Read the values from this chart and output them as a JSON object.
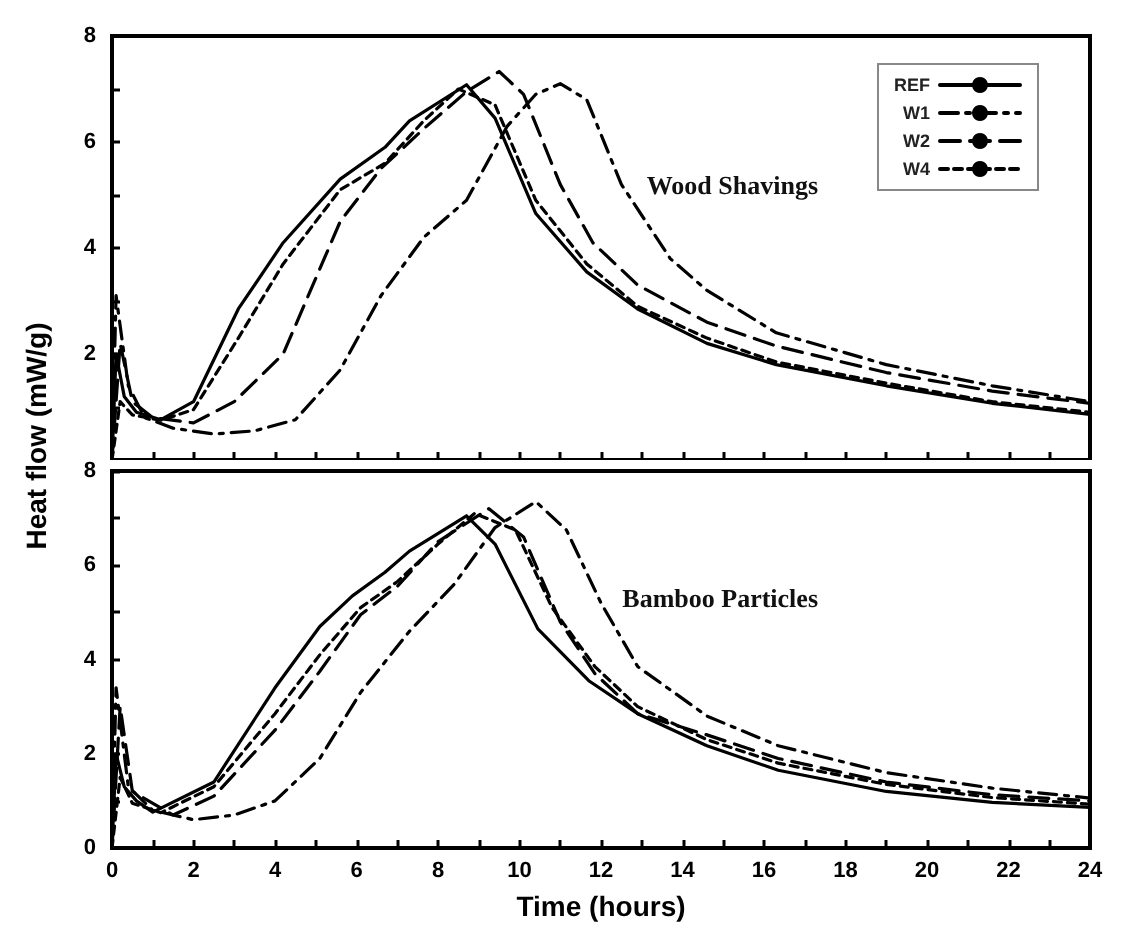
{
  "chart_data": [
    {
      "type": "line",
      "xlim": [
        0,
        24
      ],
      "ylim": [
        0,
        8
      ],
      "xticks": [
        0,
        {
          "value": 1,
          "label": null
        },
        2,
        {
          "value": 3,
          "label": null
        },
        4,
        {
          "value": 5,
          "label": null
        },
        6,
        {
          "value": 7,
          "label": null
        },
        8,
        {
          "value": 9,
          "label": null
        },
        10,
        {
          "value": 11,
          "label": null
        },
        12,
        {
          "value": 13,
          "label": null
        },
        14,
        {
          "value": 15,
          "label": null
        },
        16,
        {
          "value": 17,
          "label": null
        },
        18,
        {
          "value": 19,
          "label": null
        },
        20,
        {
          "value": 21,
          "label": null
        },
        22,
        {
          "value": 23,
          "label": null
        },
        24
      ],
      "yticks": [
        {
          "value": 0,
          "label": null
        },
        {
          "value": 1,
          "label": null
        },
        2,
        {
          "value": 3,
          "label": null
        },
        4,
        {
          "value": 5,
          "label": null
        },
        6,
        {
          "value": 7,
          "label": null
        },
        8
      ],
      "tick_labels": "y",
      "legend": "top right",
      "grid": false,
      "marker": "none",
      "annotations": [
        "Wood Shavings"
      ],
      "series": [
        {
          "name": "REF",
          "color": "#000000",
          "line_style": "solid",
          "x": [
            0,
            0.1,
            0.3,
            0.6,
            1.2,
            2,
            3.1,
            4.2,
            5.6,
            6.7,
            7.3,
            8.7,
            9.4,
            10.4,
            11.65,
            12.9,
            14.6,
            16.3,
            19,
            21.6,
            24
          ],
          "values": [
            0,
            2.0,
            1.2,
            0.9,
            0.76,
            1.1,
            2.85,
            4.1,
            5.3,
            5.9,
            6.4,
            7.08,
            6.45,
            4.65,
            3.55,
            2.85,
            2.2,
            1.8,
            1.4,
            1.07,
            0.86
          ]
        },
        {
          "name": "W1",
          "color": "#000000",
          "line_style": "dashdot",
          "x": [
            0,
            0.1,
            0.4,
            0.8,
            1.5,
            2.5,
            3.5,
            4.5,
            5.6,
            6.6,
            7.65,
            8.7,
            9.7,
            10.4,
            11,
            11.65,
            12.5,
            13.7,
            14.6,
            16.3,
            19,
            21.6,
            24
          ],
          "values": [
            0,
            3.1,
            1.4,
            0.8,
            0.6,
            0.49,
            0.55,
            0.76,
            1.7,
            3.1,
            4.2,
            4.9,
            6.3,
            6.9,
            7.1,
            6.8,
            5.2,
            3.8,
            3.2,
            2.4,
            1.8,
            1.4,
            1.1
          ]
        },
        {
          "name": "W2",
          "color": "#000000",
          "line_style": "dashed",
          "x": [
            0,
            0.2,
            0.5,
            1,
            2,
            3,
            4.2,
            5.6,
            6.6,
            7.65,
            8.7,
            9.5,
            10.1,
            11,
            11.8,
            12.9,
            14.6,
            16.3,
            19,
            21.6,
            24
          ],
          "values": [
            0,
            2.2,
            1.1,
            0.8,
            0.7,
            1.1,
            2.0,
            4.5,
            5.5,
            6.25,
            6.95,
            7.33,
            6.9,
            5.2,
            4.1,
            3.3,
            2.6,
            2.15,
            1.65,
            1.3,
            1.07
          ]
        },
        {
          "name": "W4",
          "color": "#000000",
          "line_style": "dotted",
          "x": [
            0,
            0.2,
            0.5,
            1.2,
            2,
            3.1,
            4.2,
            5.6,
            6.7,
            7.65,
            8.5,
            9.4,
            10.4,
            11.65,
            12.9,
            14.6,
            16.3,
            19,
            21.6,
            24
          ],
          "values": [
            0,
            1.1,
            0.85,
            0.75,
            0.95,
            2.3,
            3.7,
            5.1,
            5.6,
            6.4,
            7.0,
            6.7,
            4.9,
            3.7,
            2.9,
            2.3,
            1.85,
            1.45,
            1.1,
            0.9
          ]
        }
      ]
    },
    {
      "type": "line",
      "xlim": [
        0,
        24
      ],
      "ylim": [
        0,
        8
      ],
      "xlabel": "Time (hours)",
      "ylabel": "Heat flow (mW/g)",
      "xticks": [
        0,
        {
          "value": 1,
          "label": null
        },
        2,
        {
          "value": 3,
          "label": null
        },
        4,
        {
          "value": 5,
          "label": null
        },
        6,
        {
          "value": 7,
          "label": null
        },
        8,
        {
          "value": 9,
          "label": null
        },
        10,
        {
          "value": 11,
          "label": null
        },
        12,
        {
          "value": 13,
          "label": null
        },
        14,
        {
          "value": 15,
          "label": null
        },
        16,
        {
          "value": 17,
          "label": null
        },
        18,
        {
          "value": 19,
          "label": null
        },
        20,
        {
          "value": 21,
          "label": null
        },
        22,
        {
          "value": 23,
          "label": null
        },
        24
      ],
      "yticks": [
        0,
        {
          "value": 1,
          "label": null
        },
        2,
        {
          "value": 3,
          "label": null
        },
        4,
        {
          "value": 5,
          "label": null
        },
        6,
        {
          "value": 7,
          "label": null
        },
        8
      ],
      "grid": false,
      "marker": "none",
      "annotations": [
        "Bamboo Particles"
      ],
      "series": [
        {
          "color": "#000000",
          "line_style": "solid",
          "x": [
            0,
            0.1,
            0.3,
            0.6,
            1,
            2.5,
            4,
            5.1,
            5.9,
            6.7,
            7.3,
            8.7,
            9.4,
            10.45,
            11.7,
            12.9,
            14.6,
            16.35,
            19,
            21.6,
            24
          ],
          "values": [
            0,
            2.0,
            1.3,
            1.0,
            0.76,
            1.4,
            3.4,
            4.7,
            5.35,
            5.85,
            6.3,
            7.05,
            6.45,
            4.65,
            3.55,
            2.85,
            2.17,
            1.65,
            1.2,
            0.97,
            0.86
          ]
        },
        {
          "color": "#000000",
          "line_style": "dashdot",
          "x": [
            0,
            0.1,
            0.4,
            1,
            2,
            3,
            4,
            5.1,
            6.1,
            7.3,
            8.4,
            9.4,
            10.4,
            11.15,
            12,
            12.9,
            14.6,
            16.35,
            19,
            21.6,
            24
          ],
          "values": [
            0,
            3.4,
            1.3,
            0.8,
            0.6,
            0.7,
            1.0,
            1.9,
            3.3,
            4.6,
            5.6,
            6.8,
            7.35,
            6.75,
            5.2,
            3.85,
            2.8,
            2.17,
            1.6,
            1.27,
            1.06
          ]
        },
        {
          "color": "#000000",
          "line_style": "dashed",
          "x": [
            0,
            0.2,
            0.5,
            1.5,
            2.5,
            4,
            5.1,
            6.1,
            7,
            8,
            9.25,
            10.1,
            11,
            11.85,
            12.9,
            14.6,
            16.35,
            19,
            21.6,
            24
          ],
          "values": [
            0,
            3.0,
            1.2,
            0.7,
            1.1,
            2.5,
            3.75,
            4.95,
            5.55,
            6.5,
            7.2,
            6.6,
            4.8,
            3.7,
            2.85,
            2.4,
            1.9,
            1.4,
            1.13,
            1.0
          ]
        },
        {
          "color": "#000000",
          "line_style": "dotted",
          "x": [
            0,
            0.2,
            0.5,
            1.2,
            2.5,
            4,
            5.1,
            6.1,
            7,
            8,
            8.9,
            9.9,
            10.8,
            11.85,
            12.9,
            14.6,
            16.35,
            19,
            21.6,
            24
          ],
          "values": [
            0,
            1.5,
            0.95,
            0.75,
            1.3,
            2.85,
            4.1,
            5.1,
            5.65,
            6.45,
            7.1,
            6.75,
            5.1,
            3.85,
            3.0,
            2.3,
            1.8,
            1.35,
            1.07,
            0.93
          ]
        }
      ]
    }
  ]
}
